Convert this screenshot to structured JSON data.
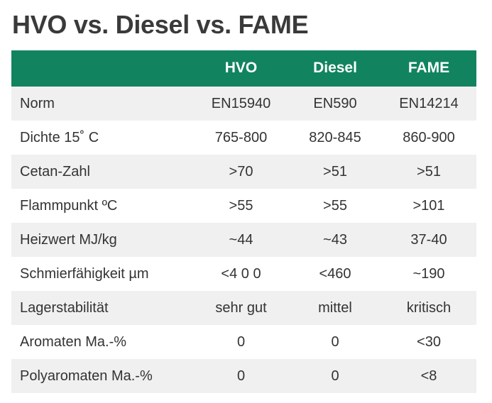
{
  "title": "HVO vs. Diesel vs. FAME",
  "table": {
    "header": [
      "",
      "HVO",
      "Diesel",
      "FAME"
    ],
    "rows": [
      [
        "Norm",
        "EN15940",
        "EN590",
        "EN14214"
      ],
      [
        "Dichte 15˚ C",
        "765-800",
        "820-845",
        "860-900"
      ],
      [
        "Cetan-Zahl",
        ">70",
        ">51",
        ">51"
      ],
      [
        "Flammpunkt ºC",
        ">55",
        ">55",
        ">101"
      ],
      [
        "Heizwert MJ/kg",
        "~44",
        "~43",
        "37-40"
      ],
      [
        "Schmierfähigkeit µm",
        "<4 0 0",
        "<460",
        "~190"
      ],
      [
        "Lagerstabilität",
        "sehr gut",
        "mittel",
        "kritisch"
      ],
      [
        "Aromaten Ma.-%",
        "0",
        "0",
        "<30"
      ],
      [
        "Polyaromaten Ma.-%",
        "0",
        "0",
        "<8"
      ]
    ]
  },
  "colors": {
    "header_background": "#11845f",
    "header_text": "#ffffff",
    "shaded_row": "#f0f0f0",
    "plain_row": "#ffffff",
    "title_text": "#3a3a3a",
    "body_text": "#333333"
  }
}
